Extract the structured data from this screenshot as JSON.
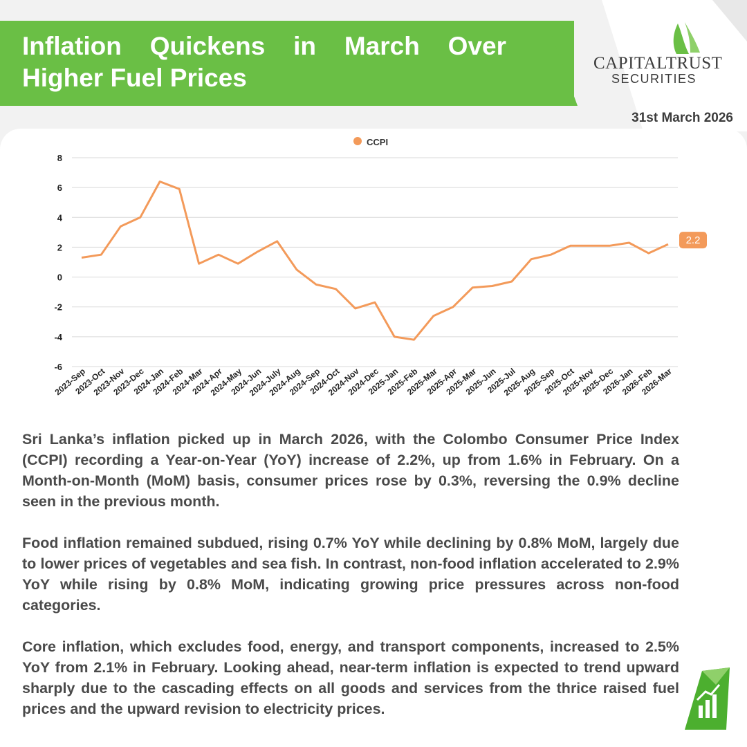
{
  "header": {
    "title": "Inflation Quickens in March Over Higher Fuel Prices",
    "date": "31st March 2026"
  },
  "logo": {
    "name": "CAPITALTRUST",
    "sub": "SECURITIES"
  },
  "colors": {
    "brand_green": "#6abf45",
    "line_orange": "#f39a5a",
    "text_gray": "#4a4a4a"
  },
  "chart_data": {
    "type": "line",
    "legend": "CCPI",
    "legend_position": "top-center",
    "grid": true,
    "ylim": [
      -6,
      8
    ],
    "yticks": [
      -6,
      -4,
      -2,
      0,
      2,
      4,
      6,
      8
    ],
    "end_label": "2.2",
    "categories": [
      "2023-Sep",
      "2023-Oct",
      "2023-Nov",
      "2023-Dec",
      "2024-Jan",
      "2024-Feb",
      "2024-Mar",
      "2024-Apr",
      "2024-May",
      "2024-Jun",
      "2024-July",
      "2024-Aug",
      "2024-Sep",
      "2024-Oct",
      "2024-Nov",
      "2024-Dec",
      "2025-Jan",
      "2025-Feb",
      "2025-Mar",
      "2025-Apr",
      "2025-Mar",
      "2025-Jun",
      "2025-Jul",
      "2025-Aug",
      "2025-Sep",
      "2025-Oct",
      "2025-Nov",
      "2025-Dec",
      "2026-Jan",
      "2026-Feb",
      "2026-Mar"
    ],
    "series": [
      {
        "name": "CCPI",
        "values": [
          1.3,
          1.5,
          3.4,
          4.0,
          6.4,
          5.9,
          0.9,
          1.5,
          0.9,
          1.7,
          2.4,
          0.5,
          -0.5,
          -0.8,
          -2.1,
          -1.7,
          -4.0,
          -4.2,
          -2.6,
          -2.0,
          -0.7,
          -0.6,
          -0.3,
          1.2,
          1.5,
          2.1,
          2.1,
          2.1,
          2.3,
          1.6,
          2.2
        ]
      }
    ]
  },
  "body": {
    "p1": "Sri Lanka’s inflation picked up in March 2026, with the Colombo Consumer Price Index (CCPI) recording a Year-on-Year (YoY) increase of 2.2%, up from 1.6% in February. On a Month-on-Month (MoM) basis, consumer prices rose by 0.3%, reversing the 0.9% decline seen in the previous month.",
    "p2": "Food inflation remained subdued, rising 0.7% YoY while declining by 0.8% MoM, largely due to lower prices of vegetables and sea fish. In contrast, non-food inflation accelerated  to 2.9% YoY while rising by 0.8% MoM, indicating growing price pressures across non-food categories.",
    "p3": "Core inflation, which excludes food, energy, and transport components, increased to 2.5% YoY from 2.1% in February. Looking ahead, near-term inflation is expected to trend upward sharply due to the cascading effects on all goods and services from the thrice raised fuel prices and the upward revision to electricity prices."
  }
}
